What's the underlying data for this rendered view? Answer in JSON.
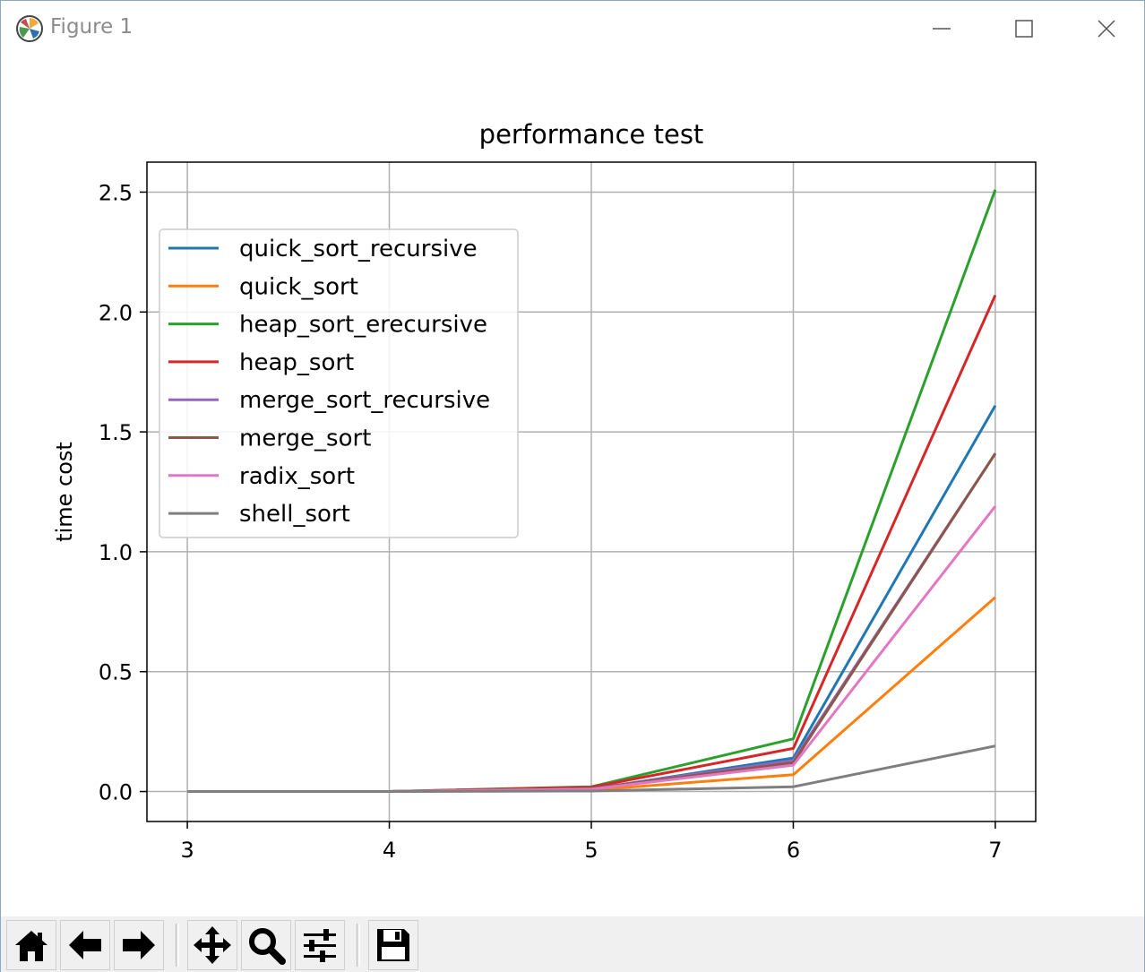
{
  "window": {
    "title": "Figure 1",
    "controls": {
      "minimize_icon": "minimize-icon",
      "maximize_icon": "maximize-icon",
      "close_icon": "close-icon"
    }
  },
  "toolbar": {
    "buttons": [
      {
        "name": "home-button",
        "icon": "home-icon"
      },
      {
        "name": "back-button",
        "icon": "arrow-left-icon"
      },
      {
        "name": "forward-button",
        "icon": "arrow-right-icon"
      },
      {
        "name": "pan-button",
        "icon": "move-icon"
      },
      {
        "name": "zoom-button",
        "icon": "magnifier-icon"
      },
      {
        "name": "configure-subplots-button",
        "icon": "sliders-icon"
      },
      {
        "name": "save-button",
        "icon": "floppy-disk-icon"
      }
    ]
  },
  "chart_data": {
    "type": "line",
    "title": "performance test",
    "xlabel": "",
    "ylabel": "time cost",
    "x": [
      3,
      4,
      5,
      6,
      7
    ],
    "xticks": [
      "3",
      "4",
      "5",
      "6",
      "7"
    ],
    "yticks": [
      "0.0",
      "0.5",
      "1.0",
      "1.5",
      "2.0",
      "2.5"
    ],
    "xlim": [
      2.8,
      7.2
    ],
    "ylim": [
      -0.125,
      2.625
    ],
    "grid": true,
    "legend_position": "upper-left",
    "series": [
      {
        "name": "quick_sort_recursive",
        "color": "#1f77b4",
        "values": [
          0.0,
          0.0,
          0.01,
          0.14,
          1.61
        ]
      },
      {
        "name": "quick_sort",
        "color": "#ff7f0e",
        "values": [
          0.0,
          0.0,
          0.006,
          0.07,
          0.81
        ]
      },
      {
        "name": "heap_sort_erecursive",
        "color": "#2ca02c",
        "values": [
          0.0,
          0.0,
          0.02,
          0.22,
          2.51
        ]
      },
      {
        "name": "heap_sort",
        "color": "#d62728",
        "values": [
          0.0,
          0.0,
          0.018,
          0.18,
          2.07
        ]
      },
      {
        "name": "merge_sort_recursive",
        "color": "#9467bd",
        "values": [
          0.0,
          0.0,
          0.012,
          0.13,
          1.41
        ]
      },
      {
        "name": "merge_sort",
        "color": "#8c564b",
        "values": [
          0.0,
          0.0,
          0.012,
          0.12,
          1.41
        ]
      },
      {
        "name": "radix_sort",
        "color": "#e377c2",
        "values": [
          0.0,
          0.0,
          0.01,
          0.11,
          1.19
        ]
      },
      {
        "name": "shell_sort",
        "color": "#7f7f7f",
        "values": [
          0.0,
          0.0,
          0.002,
          0.02,
          0.19
        ]
      }
    ]
  }
}
